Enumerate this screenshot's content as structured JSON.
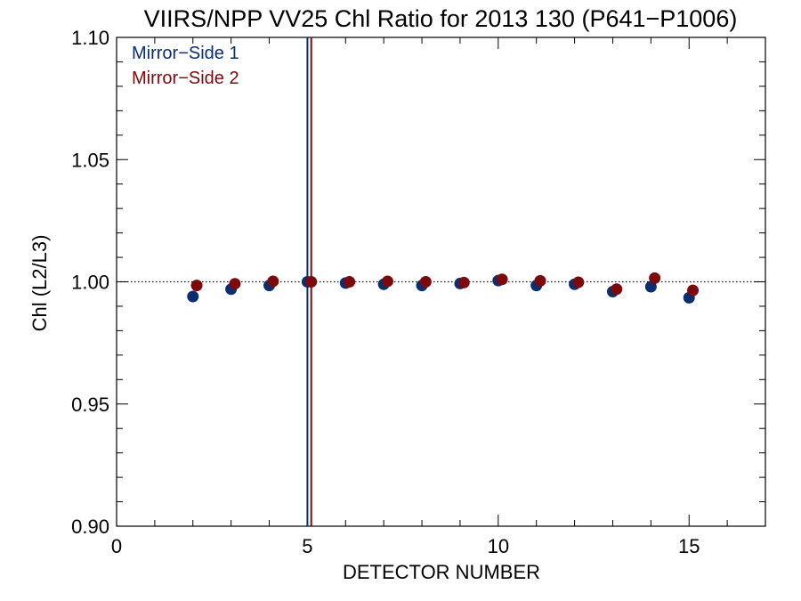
{
  "chart_data": {
    "type": "scatter",
    "title": "VIIRS/NPP VV25 Chl Ratio for 2013 130 (P641−P1006)",
    "xlabel": "DETECTOR NUMBER",
    "ylabel": "Chl (L2/L3)",
    "xlim": [
      0,
      17
    ],
    "ylim": [
      0.9,
      1.1
    ],
    "x_ticks": [
      0,
      5,
      10,
      15
    ],
    "x_tick_labels": [
      "0",
      "5",
      "10",
      "15"
    ],
    "y_ticks": [
      0.9,
      0.95,
      1.0,
      1.05,
      1.1
    ],
    "y_tick_labels": [
      "0.90",
      "0.95",
      "1.00",
      "1.05",
      "1.10"
    ],
    "reference_line_y": 1.0,
    "legend_position": "top-left",
    "series": [
      {
        "name": "Mirror−Side 1",
        "color": "#0b2f6e",
        "x": [
          2,
          3,
          4,
          5,
          6,
          7,
          8,
          9,
          10,
          11,
          12,
          13,
          14,
          15
        ],
        "y": [
          0.994,
          0.997,
          0.9985,
          1.0,
          0.9995,
          0.999,
          0.9985,
          0.9993,
          1.0005,
          0.9985,
          0.999,
          0.996,
          0.998,
          0.9935
        ],
        "vline_x": 5.0
      },
      {
        "name": "Mirror−Side 2",
        "color": "#7a0a0e",
        "x": [
          2,
          3,
          4,
          5,
          6,
          7,
          8,
          9,
          10,
          11,
          12,
          13,
          14,
          15
        ],
        "y": [
          0.9985,
          0.9992,
          1.0002,
          1.0,
          1.0,
          1.0002,
          1.0,
          0.9997,
          1.001,
          1.0004,
          0.9998,
          0.997,
          1.0015,
          0.9965
        ],
        "vline_x": 5.1
      }
    ]
  }
}
